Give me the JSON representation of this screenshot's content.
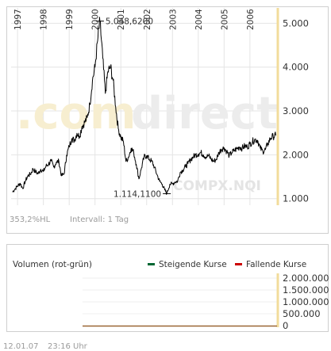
{
  "watermark": {
    "brand_left": ".com",
    "brand_right": "direct",
    "symbol": "COMPX.NQI"
  },
  "footer": {
    "date": "12.01.07",
    "time": "23:16 Uhr"
  },
  "stats": {
    "range_text": "353,2%HL",
    "interval_text": "Intervall: 1 Tag"
  },
  "colors": {
    "price_line": "#000000",
    "right_axis": "#f2dc9b",
    "rising": "#006633",
    "falling": "#cc0000",
    "grid": "#dddddd",
    "frame": "#cfcfcf",
    "watermark": "#ededed"
  },
  "chart_data": [
    {
      "type": "line",
      "title": "",
      "x_tick_labels": [
        "1997",
        "1998",
        "1999",
        "2000",
        "2001",
        "2002",
        "2003",
        "2004",
        "2005",
        "2006"
      ],
      "y_tick_labels": [
        "1.000",
        "2.000",
        "3.000",
        "4.000",
        "5.000"
      ],
      "ylim": [
        850,
        5350
      ],
      "xlim": [
        1996.75,
        2007.05
      ],
      "grid": true,
      "annotations": [
        {
          "label": "5.048,6200",
          "x": 2000.19,
          "y": 5048.62
        },
        {
          "label": "1.114,1100",
          "x": 2002.78,
          "y": 1114.11
        }
      ],
      "series": [
        {
          "x": [
            1996.8,
            1996.9,
            1997.0,
            1997.1,
            1997.2,
            1997.3,
            1997.4,
            1997.5,
            1997.6,
            1997.7,
            1997.8,
            1997.9,
            1998.0,
            1998.1,
            1998.2,
            1998.3,
            1998.4,
            1998.5,
            1998.6,
            1998.7,
            1998.8,
            1998.9,
            1999.0,
            1999.1,
            1999.2,
            1999.3,
            1999.4,
            1999.5,
            1999.6,
            1999.7,
            1999.8,
            1999.9,
            2000.0,
            2000.1,
            2000.19,
            2000.3,
            2000.4,
            2000.5,
            2000.6,
            2000.7,
            2000.8,
            2000.9,
            2001.0,
            2001.1,
            2001.2,
            2001.3,
            2001.4,
            2001.5,
            2001.6,
            2001.7,
            2001.8,
            2001.9,
            2002.0,
            2002.1,
            2002.2,
            2002.3,
            2002.4,
            2002.5,
            2002.6,
            2002.7,
            2002.78,
            2002.9,
            2003.0,
            2003.1,
            2003.2,
            2003.3,
            2003.4,
            2003.5,
            2003.6,
            2003.7,
            2003.8,
            2003.9,
            2004.0,
            2004.1,
            2004.2,
            2004.3,
            2004.4,
            2004.5,
            2004.6,
            2004.7,
            2004.8,
            2004.9,
            2005.0,
            2005.1,
            2005.2,
            2005.3,
            2005.4,
            2005.5,
            2005.6,
            2005.7,
            2005.8,
            2005.9,
            2006.0,
            2006.1,
            2006.2,
            2006.3,
            2006.4,
            2006.5,
            2006.6,
            2006.7,
            2006.8,
            2006.9,
            2007.0
          ],
          "y": [
            1150,
            1220,
            1290,
            1350,
            1230,
            1400,
            1520,
            1560,
            1680,
            1610,
            1570,
            1670,
            1620,
            1740,
            1790,
            1860,
            1720,
            1830,
            1850,
            1520,
            1560,
            1990,
            2190,
            2370,
            2330,
            2490,
            2420,
            2650,
            2740,
            2850,
            3150,
            3700,
            4000,
            4600,
            5048,
            4200,
            3400,
            3900,
            4000,
            3700,
            3100,
            2600,
            2400,
            2300,
            1850,
            1950,
            2150,
            2050,
            1780,
            1450,
            1700,
            1950,
            1980,
            1900,
            1850,
            1720,
            1550,
            1400,
            1330,
            1200,
            1114,
            1330,
            1340,
            1380,
            1400,
            1600,
            1650,
            1730,
            1800,
            1890,
            1950,
            2000,
            2020,
            2050,
            2000,
            1950,
            1980,
            1900,
            1850,
            1900,
            2050,
            2130,
            2160,
            2080,
            1980,
            2050,
            2100,
            2140,
            2180,
            2150,
            2200,
            2180,
            2250,
            2300,
            2350,
            2330,
            2150,
            2080,
            2120,
            2260,
            2380,
            2420,
            2440
          ]
        }
      ]
    },
    {
      "type": "bar",
      "title": "Volumen (rot-grün)",
      "y_tick_labels": [
        "0",
        "500.000",
        "1.000.000",
        "1.500.000",
        "2.000.000"
      ],
      "ylim": [
        0,
        2000000
      ],
      "legend_position": "top-right",
      "series": [
        {
          "name": "Steigende Kurse",
          "color": "#006633"
        },
        {
          "name": "Fallende Kurse",
          "color": "#cc0000"
        }
      ]
    }
  ]
}
